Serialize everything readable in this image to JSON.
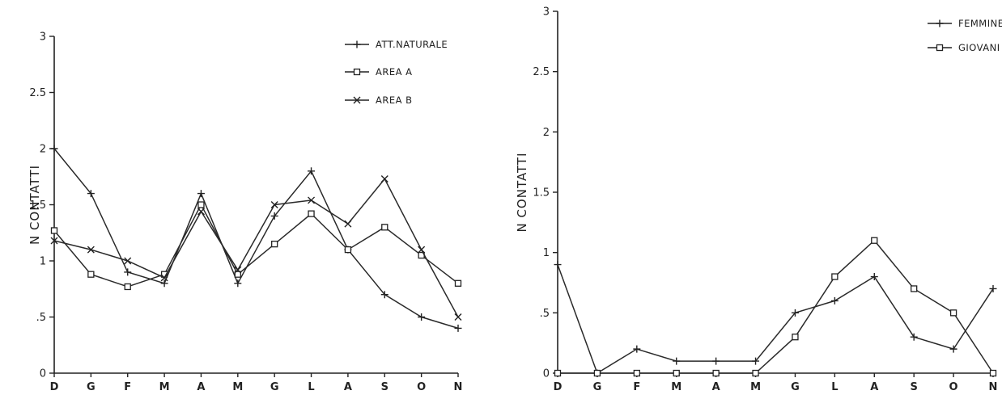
{
  "chart_data": [
    {
      "type": "line",
      "ylabel": "N CONTATTI",
      "xlabel": "",
      "ylim": [
        0,
        3
      ],
      "yticks": [
        0,
        0.5,
        1,
        1.5,
        2,
        2.5,
        3
      ],
      "ytick_labels": [
        "0",
        ".5",
        "1",
        "1.5",
        "2",
        "2.5",
        "3"
      ],
      "categories": [
        "D",
        "G",
        "F",
        "M",
        "A",
        "M",
        "G",
        "L",
        "A",
        "S",
        "O",
        "N"
      ],
      "legend_position": "top-right",
      "series": [
        {
          "name": "ATT.NATURALE",
          "marker": "plus",
          "values": [
            2.0,
            1.6,
            0.9,
            0.8,
            1.6,
            0.8,
            1.4,
            1.8,
            1.1,
            0.7,
            0.5,
            0.4
          ]
        },
        {
          "name": "AREA A",
          "marker": "square",
          "values": [
            1.27,
            0.88,
            0.77,
            0.88,
            1.5,
            0.88,
            1.15,
            1.42,
            1.1,
            1.3,
            1.05,
            0.8
          ]
        },
        {
          "name": "AREA B",
          "marker": "x",
          "values": [
            1.18,
            1.1,
            1.0,
            0.85,
            1.44,
            0.92,
            1.5,
            1.54,
            1.33,
            1.73,
            1.1,
            0.5
          ]
        }
      ]
    },
    {
      "type": "line",
      "ylabel": "N CONTATTI",
      "xlabel": "",
      "ylim": [
        0,
        3
      ],
      "yticks": [
        0,
        0.5,
        1,
        1.5,
        2,
        2.5,
        3
      ],
      "ytick_labels": [
        "0",
        ".5",
        "1",
        "1.5",
        "2",
        "2.5",
        "3"
      ],
      "categories": [
        "D",
        "G",
        "F",
        "M",
        "A",
        "M",
        "G",
        "L",
        "A",
        "S",
        "O",
        "N"
      ],
      "legend_position": "top-right",
      "series": [
        {
          "name": "FEMMINE",
          "marker": "plus",
          "values": [
            0.9,
            0,
            0.2,
            0.1,
            0.1,
            0.1,
            0.5,
            0.6,
            0.8,
            0.3,
            0.2,
            0.7
          ]
        },
        {
          "name": "GIOVANI",
          "marker": "square",
          "values": [
            0,
            0,
            0,
            0,
            0,
            0,
            0.3,
            0.8,
            1.1,
            0.7,
            0.5,
            0
          ]
        }
      ]
    }
  ]
}
